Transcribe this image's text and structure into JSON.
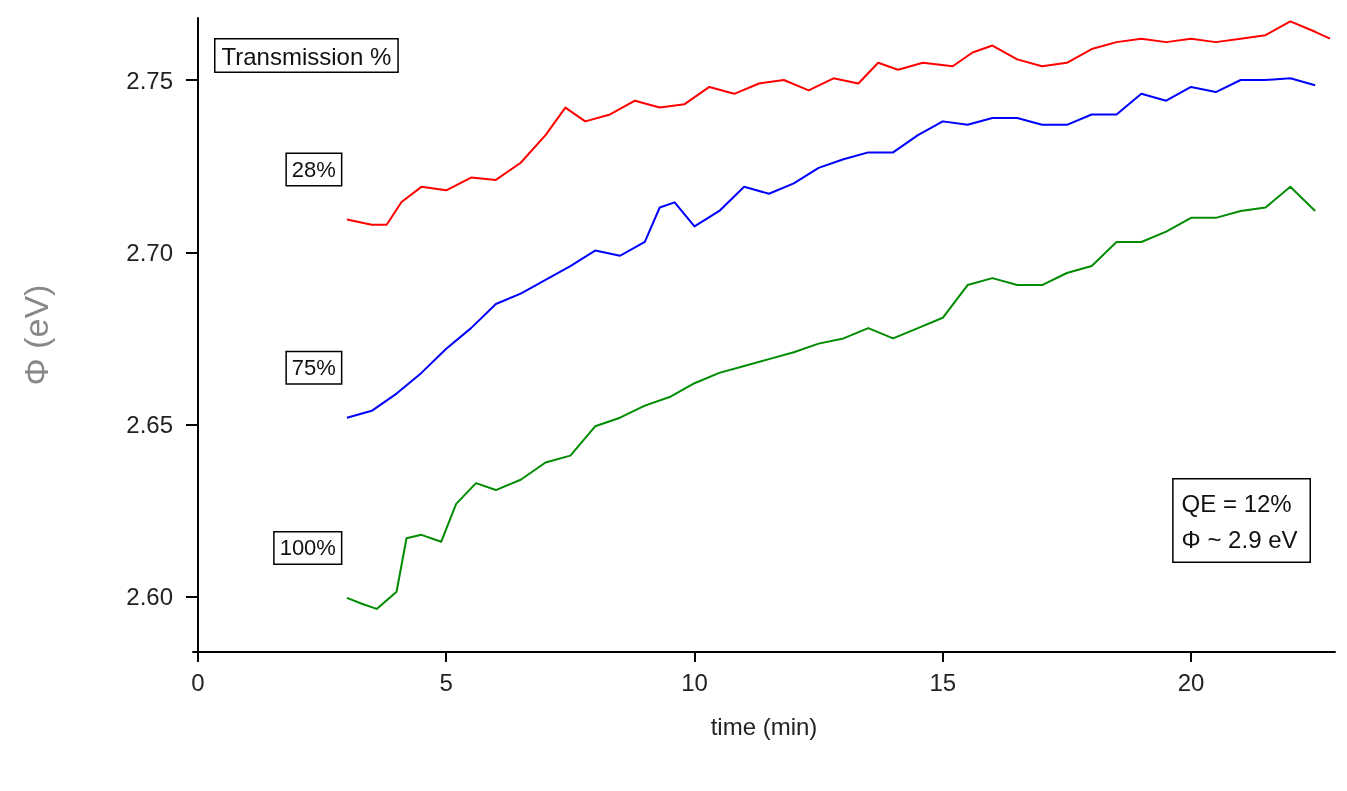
{
  "chart_data": {
    "type": "line",
    "xlabel": "time (min)",
    "ylabel": "Φ (eV)",
    "legend_title": "Transmission %",
    "xlim": [
      -0.1,
      22.9
    ],
    "xticks": [
      0,
      5,
      10,
      15,
      20
    ],
    "ylim": [
      2.584,
      2.768
    ],
    "yticks": [
      {
        "value": 2.6,
        "label": "2.60"
      },
      2.65,
      {
        "value": 2.7,
        "label": "2.70"
      },
      2.75
    ],
    "grid": false,
    "legend": false,
    "marker": "none",
    "line_style": "solid",
    "annotations": [
      "QE = 12%\nΦ ~ 2.9 eV"
    ],
    "series": [
      {
        "name": "28%",
        "color": "#ff0000",
        "x": [
          3.0,
          3.5,
          3.8,
          4.1,
          4.5,
          5.0,
          5.5,
          6.0,
          6.5,
          7.0,
          7.4,
          7.8,
          8.3,
          8.8,
          9.3,
          9.8,
          10.3,
          10.8,
          11.3,
          11.8,
          12.3,
          12.8,
          13.3,
          13.7,
          14.1,
          14.6,
          15.2,
          15.6,
          16.0,
          16.5,
          17.0,
          17.5,
          18.0,
          18.5,
          19.0,
          19.5,
          20.0,
          20.5,
          21.0,
          21.5,
          22.0,
          22.5,
          22.8
        ],
        "values": [
          2.7095,
          2.708,
          2.708,
          2.7146,
          2.719,
          2.718,
          2.7217,
          2.721,
          2.726,
          2.734,
          2.742,
          2.738,
          2.74,
          2.744,
          2.742,
          2.743,
          2.748,
          2.746,
          2.749,
          2.75,
          2.747,
          2.7505,
          2.749,
          2.755,
          2.753,
          2.755,
          2.754,
          2.758,
          2.76,
          2.756,
          2.754,
          2.755,
          2.759,
          2.761,
          2.762,
          2.761,
          2.762,
          2.761,
          2.762,
          2.763,
          2.767,
          2.764,
          2.762
        ]
      },
      {
        "name": "75%",
        "color": "#0000ff",
        "x": [
          3.0,
          3.5,
          4.0,
          4.5,
          5.0,
          5.5,
          6.0,
          6.5,
          7.0,
          7.5,
          8.0,
          8.5,
          9.0,
          9.3,
          9.6,
          10.0,
          10.5,
          11.0,
          11.5,
          12.0,
          12.5,
          13.0,
          13.5,
          14.0,
          14.5,
          15.0,
          15.5,
          16.0,
          16.5,
          17.0,
          17.5,
          18.0,
          18.5,
          19.0,
          19.5,
          20.0,
          20.5,
          21.0,
          21.5,
          22.0,
          22.5
        ],
        "values": [
          2.652,
          2.654,
          2.659,
          2.665,
          2.672,
          2.678,
          2.685,
          2.688,
          2.692,
          2.696,
          2.7005,
          2.699,
          2.703,
          2.713,
          2.7145,
          2.7075,
          2.712,
          2.719,
          2.717,
          2.72,
          2.7245,
          2.727,
          2.729,
          2.729,
          2.734,
          2.738,
          2.737,
          2.739,
          2.739,
          2.737,
          2.737,
          2.74,
          2.74,
          2.746,
          2.744,
          2.748,
          2.7465,
          2.75,
          2.75,
          2.7505,
          2.7485
        ]
      },
      {
        "name": "100%",
        "color": "#008c00",
        "x": [
          3.0,
          3.3,
          3.6,
          4.0,
          4.2,
          4.5,
          4.9,
          5.2,
          5.6,
          6.0,
          6.5,
          7.0,
          7.5,
          8.0,
          8.5,
          9.0,
          9.5,
          10.0,
          10.5,
          11.0,
          11.5,
          12.0,
          12.5,
          13.0,
          13.5,
          14.0,
          14.5,
          15.0,
          15.5,
          16.0,
          16.5,
          17.0,
          17.5,
          18.0,
          18.5,
          19.0,
          19.5,
          20.0,
          20.5,
          21.0,
          21.5,
          22.0,
          22.5
        ],
        "values": [
          2.5997,
          2.598,
          2.5965,
          2.6015,
          2.617,
          2.618,
          2.616,
          2.627,
          2.633,
          2.631,
          2.634,
          2.639,
          2.641,
          2.6495,
          2.652,
          2.6555,
          2.658,
          2.662,
          2.665,
          2.667,
          2.669,
          2.671,
          2.6735,
          2.675,
          2.678,
          2.675,
          2.678,
          2.681,
          2.6905,
          2.6925,
          2.6905,
          2.6905,
          2.694,
          2.696,
          2.703,
          2.703,
          2.706,
          2.71,
          2.71,
          2.712,
          2.713,
          2.719,
          2.712
        ]
      }
    ]
  }
}
